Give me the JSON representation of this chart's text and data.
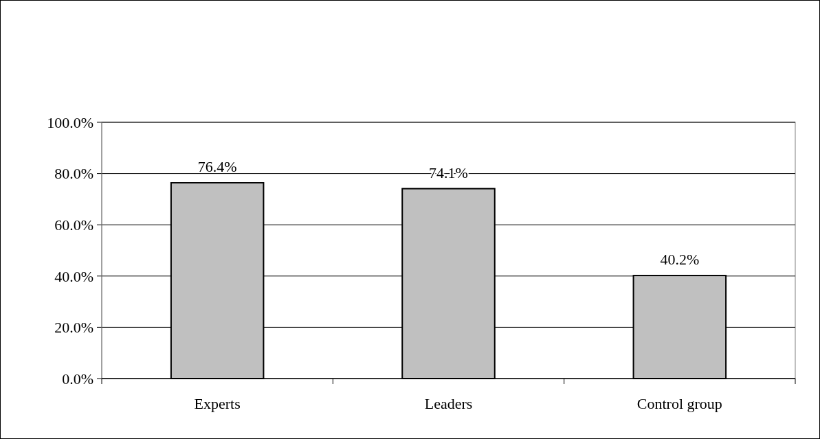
{
  "chart_data": {
    "type": "bar",
    "categories": [
      "Experts",
      "Leaders",
      "Control group"
    ],
    "values": [
      76.4,
      74.1,
      40.2
    ],
    "color": "#c0c0c0",
    "value_labels": [
      "76.4%",
      "74.1%",
      "40.2%"
    ],
    "ylim": [
      0,
      100
    ],
    "yticks": [
      {
        "value": 0,
        "label": "0.0%"
      },
      {
        "value": 20,
        "label": "20.0%"
      },
      {
        "value": 40,
        "label": "40.0%"
      },
      {
        "value": 60,
        "label": "60.0%"
      },
      {
        "value": 80,
        "label": "80.0%"
      },
      {
        "value": 100,
        "label": "100.0%"
      }
    ],
    "grid": "y"
  }
}
